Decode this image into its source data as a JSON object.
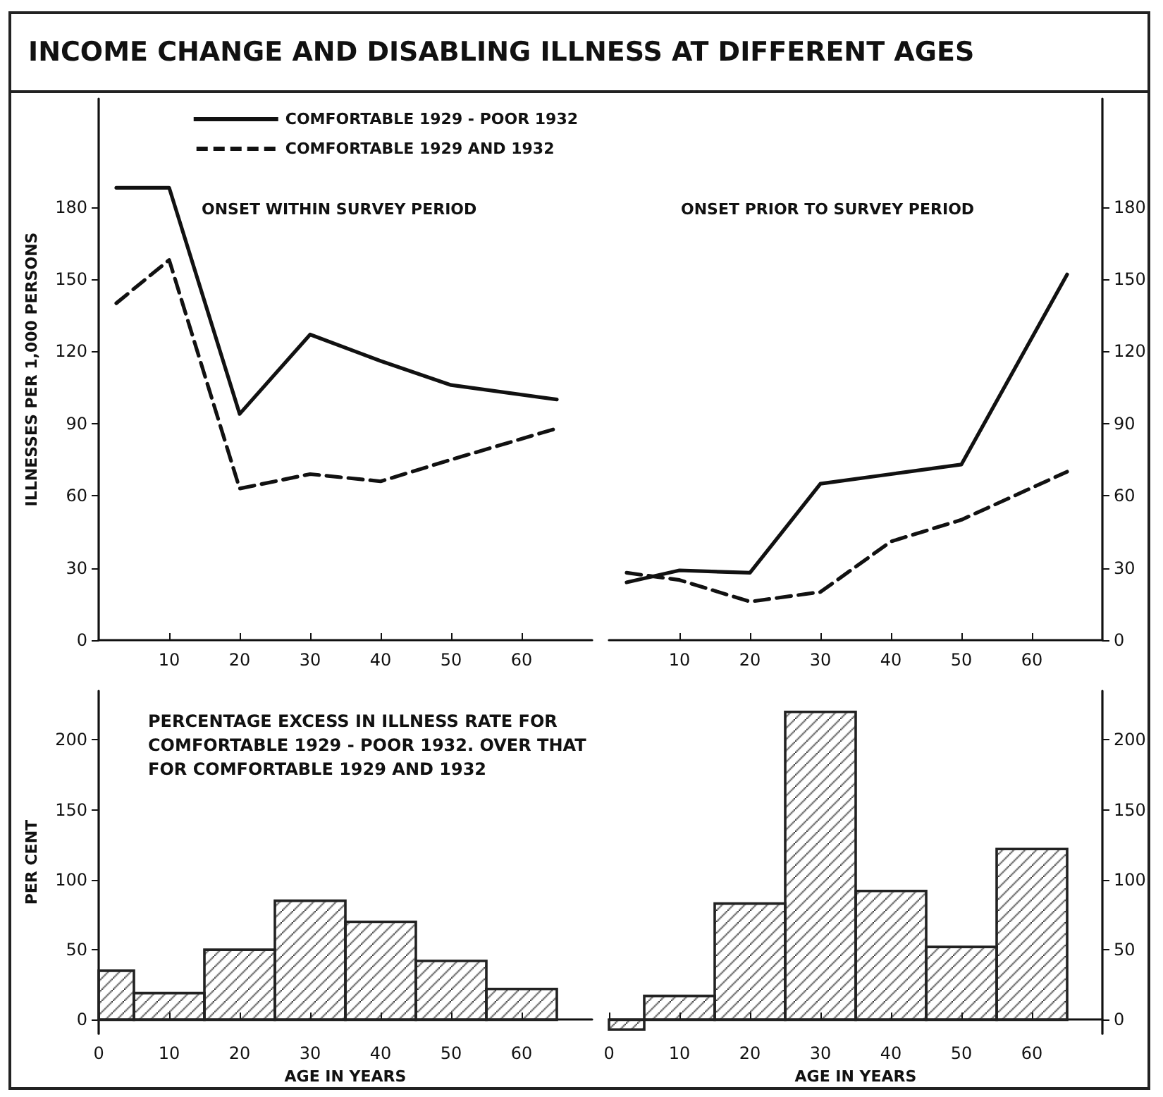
{
  "chart_data": [
    {
      "type": "line",
      "title": "INCOME CHANGE AND DISABLING ILLNESS AT DIFFERENT AGES",
      "subtitle": "ONSET WITHIN SURVEY PERIOD",
      "ylabel": "ILLNESSES PER 1,000 PERSONS",
      "x": [
        2.5,
        10,
        20,
        30,
        40,
        50,
        65
      ],
      "series": [
        {
          "name": "COMFORTABLE 1929 - POOR 1932",
          "color": "#111111",
          "line_style": "solid",
          "values": [
            188,
            188,
            94,
            127,
            116,
            106,
            100
          ]
        },
        {
          "name": "COMFORTABLE 1929 AND 1932",
          "color": "#111111",
          "line_style": "dashed",
          "values": [
            140,
            158,
            63,
            69,
            66,
            75,
            88
          ]
        }
      ],
      "xlim": [
        0,
        70
      ],
      "xticks": [
        10,
        20,
        30,
        40,
        50,
        60
      ],
      "ylim": [
        0,
        225
      ],
      "yticks": [
        0,
        30,
        60,
        90,
        120,
        150,
        180
      ],
      "grid": false,
      "legend": "top right",
      "marker": "none"
    },
    {
      "type": "line",
      "subtitle": "ONSET PRIOR TO SURVEY PERIOD",
      "x": [
        2.5,
        10,
        20,
        30,
        40,
        50,
        65
      ],
      "series": [
        {
          "color": "#111111",
          "line_style": "solid",
          "values": [
            24,
            29,
            28,
            65,
            69,
            73,
            152
          ]
        },
        {
          "color": "#111111",
          "line_style": "dashed",
          "values": [
            28,
            25,
            16,
            20,
            41,
            50,
            70
          ]
        }
      ],
      "xlim": [
        0,
        70
      ],
      "xticks": [
        10,
        20,
        30,
        40,
        50,
        60
      ],
      "ylim": [
        0,
        225
      ],
      "yticks": [
        0,
        30,
        60,
        90,
        120,
        150,
        180
      ],
      "grid": false,
      "marker": "none"
    },
    {
      "type": "histogram",
      "title": "PERCENTAGE EXCESS IN ILLNESS RATE FOR COMFORTABLE 1929 - POOR 1932. OVER THAT FOR COMFORTABLE 1929 AND 1932",
      "xlabel": "AGE IN YEARS",
      "ylabel": "PER CENT",
      "bins": [
        0,
        5,
        15,
        25,
        35,
        45,
        55,
        65
      ],
      "values": [
        35,
        19,
        50,
        85,
        70,
        42,
        22
      ],
      "color": "#222222",
      "xlim": [
        0,
        70
      ],
      "xticks": [
        0,
        10,
        20,
        30,
        40,
        50,
        60
      ],
      "ylim": [
        -10,
        235
      ],
      "yticks": [
        0,
        50,
        100,
        150,
        200
      ],
      "grid": false
    },
    {
      "type": "histogram",
      "xlabel": "AGE IN YEARS",
      "bins": [
        0,
        5,
        15,
        25,
        35,
        45,
        55,
        65
      ],
      "values": [
        -7,
        17,
        83,
        220,
        92,
        52,
        122
      ],
      "color": "#222222",
      "xlim": [
        0,
        70
      ],
      "xticks": [
        0,
        10,
        20,
        30,
        40,
        50,
        60
      ],
      "ylim": [
        -10,
        235
      ],
      "yticks": [
        0,
        50,
        100,
        150,
        200
      ],
      "grid": false
    }
  ]
}
